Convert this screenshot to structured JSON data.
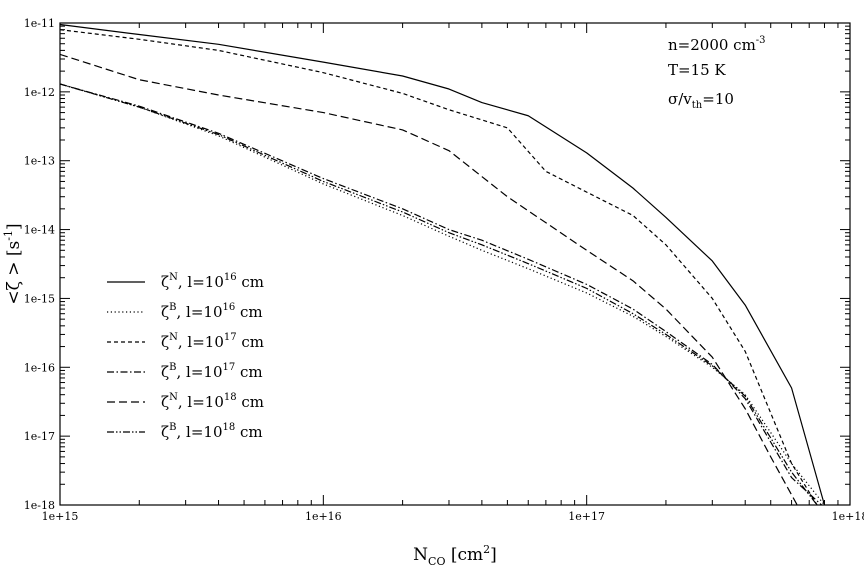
{
  "chart_data": {
    "type": "line",
    "x_scale": "log",
    "y_scale": "log",
    "xlim": [
      1000000000000000.0,
      1e+18
    ],
    "ylim": [
      1e-18,
      1e-11
    ],
    "xlabel": {
      "main": "N",
      "sub": "CO",
      "rest": " [cm",
      "sup": "2",
      "end": "]"
    },
    "ylabel": {
      "pre": "<ζ > [s",
      "sup": "-1",
      "end": "]"
    },
    "x_ticks": [
      {
        "value": 1000000000000000.0,
        "label": "1e+15"
      },
      {
        "value": 1e+16,
        "label": "1e+16"
      },
      {
        "value": 1e+17,
        "label": "1e+17"
      },
      {
        "value": 1e+18,
        "label": "1e+18"
      }
    ],
    "y_ticks": [
      {
        "value": 1e-11,
        "label": "1e-11"
      },
      {
        "value": 1e-12,
        "label": "1e-12"
      },
      {
        "value": 1e-13,
        "label": "1e-13"
      },
      {
        "value": 1e-14,
        "label": "1e-14"
      },
      {
        "value": 1e-15,
        "label": "1e-15"
      },
      {
        "value": 1e-16,
        "label": "1e-16"
      },
      {
        "value": 1e-17,
        "label": "1e-17"
      },
      {
        "value": 1e-18,
        "label": "1e-18"
      }
    ],
    "annotations": {
      "n": {
        "main": "n=2000 cm",
        "sup": "-3"
      },
      "T": {
        "main": "T=15 K"
      },
      "sigma": {
        "main": "σ/v",
        "sub": "th",
        "end": "=10"
      }
    },
    "legend_placement": "lower-left",
    "series": [
      {
        "name": "ζ^N, l=10^16 cm",
        "legend": {
          "sym": "ζ",
          "symsup": "N",
          "mid": ", l=10",
          "exp": "16",
          "unit": " cm"
        },
        "dash": "solid",
        "x": [
          1000000000000000.0,
          2000000000000000.0,
          4000000000000000.0,
          1e+16,
          2e+16,
          3e+16,
          4e+16,
          6e+16,
          1e+17,
          1.5e+17,
          2e+17,
          3e+17,
          4e+17,
          6e+17,
          8e+17
        ],
        "y": [
          9.5e-12,
          6.8e-12,
          4.9e-12,
          2.7e-12,
          1.7e-12,
          1.1e-12,
          7e-13,
          4.5e-13,
          1.3e-13,
          4e-14,
          1.5e-14,
          3.5e-15,
          8e-16,
          5e-17,
          1e-18
        ]
      },
      {
        "name": "ζ^B, l=10^16 cm",
        "legend": {
          "sym": "ζ",
          "symsup": "B",
          "mid": ", l=10",
          "exp": "16",
          "unit": " cm"
        },
        "dash": "dotted",
        "x": [
          1000000000000000.0,
          2000000000000000.0,
          4000000000000000.0,
          1e+16,
          2e+16,
          3e+16,
          4e+16,
          6e+16,
          1e+17,
          1.5e+17,
          2e+17,
          3e+17,
          4e+17,
          6e+17,
          8e+17
        ],
        "y": [
          1.3e-12,
          6e-13,
          2.3e-13,
          4.6e-14,
          1.6e-14,
          8e-15,
          5e-15,
          2.7e-15,
          1.2e-15,
          5.5e-16,
          2.8e-16,
          1e-16,
          4e-17,
          4e-18,
          1e-18
        ]
      },
      {
        "name": "ζ^N, l=10^17 cm",
        "legend": {
          "sym": "ζ",
          "symsup": "N",
          "mid": ", l=10",
          "exp": "17",
          "unit": " cm"
        },
        "dash": "dashed",
        "x": [
          1000000000000000.0,
          2000000000000000.0,
          4000000000000000.0,
          1e+16,
          2e+16,
          3e+16,
          5e+16,
          7e+16,
          1e+17,
          1.5e+17,
          2e+17,
          3e+17,
          4e+17,
          6e+17,
          7.5e+17
        ],
        "y": [
          8e-12,
          5.8e-12,
          4e-12,
          1.9e-12,
          9.5e-13,
          5.5e-13,
          3e-13,
          7e-14,
          3.5e-14,
          1.6e-14,
          6e-15,
          1e-15,
          1.7e-16,
          4e-18,
          1e-18
        ]
      },
      {
        "name": "ζ^B, l=10^17 cm",
        "legend": {
          "sym": "ζ",
          "symsup": "B",
          "mid": ", l=10",
          "exp": "17",
          "unit": " cm"
        },
        "dash": "dashdot",
        "x": [
          1000000000000000.0,
          2000000000000000.0,
          4000000000000000.0,
          1e+16,
          2e+16,
          3e+16,
          4e+16,
          6e+16,
          1e+17,
          1.5e+17,
          2e+17,
          3e+17,
          4e+17,
          6e+17,
          7.8e+17
        ],
        "y": [
          1.3e-12,
          6.2e-13,
          2.5e-13,
          5.5e-14,
          2e-14,
          1e-14,
          7e-15,
          3.7e-15,
          1.6e-15,
          7e-16,
          3.3e-16,
          1.1e-16,
          3.5e-17,
          2.5e-18,
          1e-18
        ]
      },
      {
        "name": "ζ^N, l=10^18 cm",
        "legend": {
          "sym": "ζ",
          "symsup": "N",
          "mid": ", l=10",
          "exp": "18",
          "unit": " cm"
        },
        "dash": "longdash",
        "x": [
          1000000000000000.0,
          2000000000000000.0,
          4000000000000000.0,
          1e+16,
          2e+16,
          3e+16,
          5e+16,
          1e+17,
          1.5e+17,
          2e+17,
          3e+17,
          4e+17,
          5e+17,
          6.3e+17
        ],
        "y": [
          3.5e-12,
          1.5e-12,
          9e-13,
          5e-13,
          2.8e-13,
          1.4e-13,
          3e-14,
          5e-15,
          1.8e-15,
          7e-16,
          1.4e-16,
          2.5e-17,
          5e-18,
          1e-18
        ]
      },
      {
        "name": "ζ^B, l=10^18 cm",
        "legend": {
          "sym": "ζ",
          "symsup": "B",
          "mid": ", l=10",
          "exp": "18",
          "unit": " cm"
        },
        "dash": "dashdotdot",
        "x": [
          1000000000000000.0,
          2000000000000000.0,
          4000000000000000.0,
          1e+16,
          2e+16,
          3e+16,
          4e+16,
          6e+16,
          1e+17,
          1.5e+17,
          2e+17,
          3e+17,
          4e+17,
          6e+17,
          7.5e+17
        ],
        "y": [
          1.3e-12,
          6e-13,
          2.4e-13,
          5e-14,
          1.8e-14,
          9e-15,
          6e-15,
          3.2e-15,
          1.4e-15,
          6e-16,
          3e-16,
          1.05e-16,
          3.8e-17,
          3e-18,
          1e-18
        ]
      }
    ]
  }
}
